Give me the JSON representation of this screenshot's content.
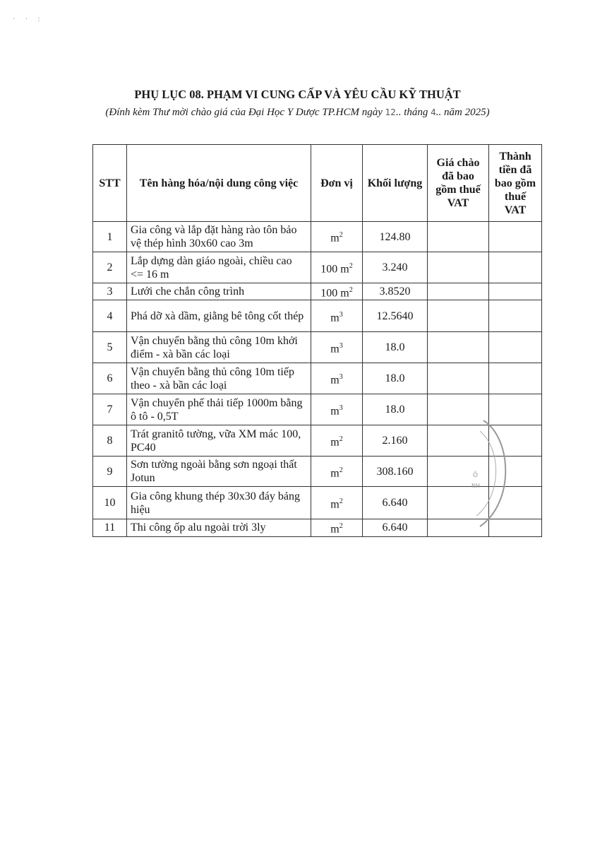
{
  "document": {
    "title": "PHỤ LỤC 08. PHẠM VI CUNG CẤP VÀ YÊU CẦU KỸ THUẬT",
    "subtitle_prefix": "(Đính kèm Thư mời chào giá của Đại Học Y Dược TP.HCM ngày ",
    "handwritten_day": "12",
    "subtitle_middle": ".. tháng ",
    "handwritten_month": "4",
    "subtitle_suffix": ".. năm 2025)"
  },
  "table": {
    "headers": [
      "STT",
      "Tên hàng hóa/nội dung công việc",
      "Đơn vị",
      "Khối lượng",
      "Giá chào đã bao gồm thuế VAT",
      "Thành tiền đã bao gồm thuế VAT"
    ],
    "rows": [
      {
        "stt": "1",
        "name": "Gia công và lắp đặt hàng rào tôn bảo vệ thép hình 30x60 cao 3m",
        "unit": "m",
        "unit_exp": "2",
        "qty": "124.80",
        "price": "",
        "total": ""
      },
      {
        "stt": "2",
        "name": "Lắp dựng dàn giáo ngoài, chiều cao <= 16 m",
        "unit": "100 m",
        "unit_exp": "2",
        "qty": "3.240",
        "price": "",
        "total": ""
      },
      {
        "stt": "3",
        "name": "Lưới che chắn công trình",
        "unit": "100 m",
        "unit_exp": "2",
        "qty": "3.8520",
        "price": "",
        "total": ""
      },
      {
        "stt": "4",
        "name": "Phá dỡ xà dầm, giằng bê tông cốt thép",
        "unit": "m",
        "unit_exp": "3",
        "qty": "12.5640",
        "price": "",
        "total": ""
      },
      {
        "stt": "5",
        "name": "Vận chuyển bằng thủ công 10m khởi điểm - xà bần các loại",
        "unit": "m",
        "unit_exp": "3",
        "qty": "18.0",
        "price": "",
        "total": ""
      },
      {
        "stt": "6",
        "name": "Vận chuyển bằng thủ công 10m tiếp theo - xà bần các loại",
        "unit": "m",
        "unit_exp": "3",
        "qty": "18.0",
        "price": "",
        "total": ""
      },
      {
        "stt": "7",
        "name": "Vận chuyển phế thải tiếp 1000m bằng ô tô - 0,5T",
        "unit": "m",
        "unit_exp": "3",
        "qty": "18.0",
        "price": "",
        "total": ""
      },
      {
        "stt": "8",
        "name": "Trát granitô tường, vữa XM mác 100, PC40",
        "unit": "m",
        "unit_exp": "2",
        "qty": "2.160",
        "price": "",
        "total": ""
      },
      {
        "stt": "9",
        "name": "Sơn tường ngoài bằng sơn ngoại thất  Jotun",
        "unit": "m",
        "unit_exp": "2",
        "qty": "308.160",
        "price": "",
        "total": ""
      },
      {
        "stt": "10",
        "name": "Gia công khung thép 30x30 đáy bảng hiệu",
        "unit": "m",
        "unit_exp": "2",
        "qty": "6.640",
        "price": "",
        "total": ""
      },
      {
        "stt": "11",
        "name": "Thi công ốp alu ngoài trời 3ly",
        "unit": "m",
        "unit_exp": "2",
        "qty": "6.640",
        "price": "",
        "total": ""
      }
    ]
  },
  "stamp": {
    "fragment_text": "Ô NH TẾ",
    "color": "#888888"
  }
}
